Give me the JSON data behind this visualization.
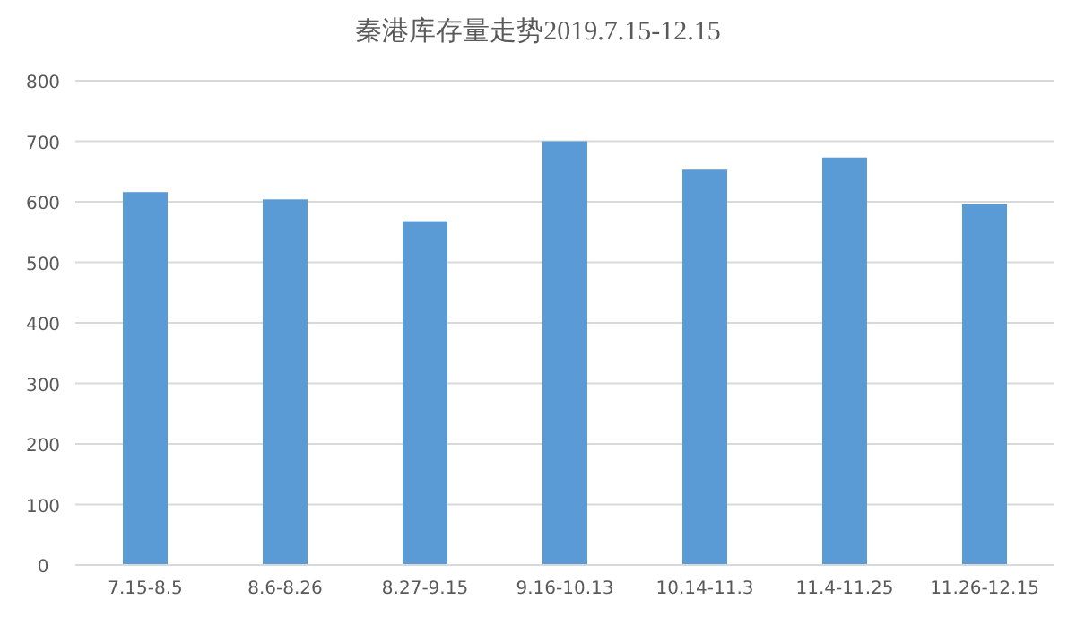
{
  "chart_data": {
    "type": "bar",
    "title": "秦港库存量走势2019.7.15-12.15",
    "categories": [
      "7.15-8.5",
      "8.6-8.26",
      "8.27-9.15",
      "9.16-10.13",
      "10.14-11.3",
      "11.4-11.25",
      "11.26-12.15"
    ],
    "values": [
      616,
      604,
      568,
      700,
      653,
      673,
      596
    ],
    "color": "#5b9bd5",
    "ylim": [
      0,
      800
    ],
    "yticks": [
      0,
      100,
      200,
      300,
      400,
      500,
      600,
      700,
      800
    ],
    "grid": "y"
  }
}
